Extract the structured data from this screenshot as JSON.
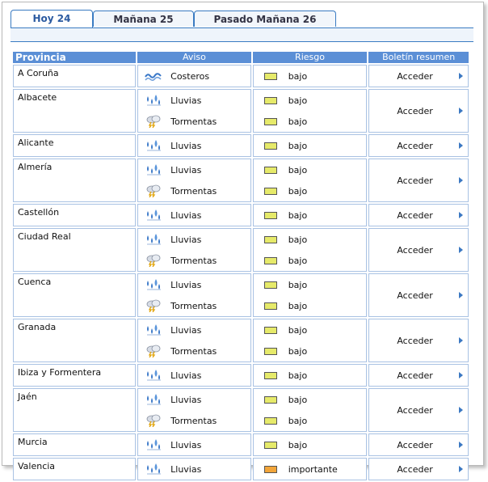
{
  "tabs": [
    {
      "label": "Hoy 24",
      "active": true
    },
    {
      "label": "Mañana 25",
      "active": false
    },
    {
      "label": "Pasado Mañana 26",
      "active": false
    }
  ],
  "table": {
    "headers": {
      "provincia": "Provincia",
      "aviso": "Aviso",
      "riesgo": "Riesgo",
      "boletin": "Boletín resumen"
    },
    "access_label": "Acceder",
    "colors": {
      "bajo": "#e6ea6a",
      "importante": "#f2a53a"
    },
    "rows": [
      {
        "provincia": "A Coruña",
        "avisos": [
          {
            "icon": "coastal-waves-icon",
            "label": "Costeros",
            "riesgo": "bajo",
            "level": "bajo"
          }
        ]
      },
      {
        "provincia": "Albacete",
        "avisos": [
          {
            "icon": "rain-icon",
            "label": "Lluvias",
            "riesgo": "bajo",
            "level": "bajo"
          },
          {
            "icon": "storm-icon",
            "label": "Tormentas",
            "riesgo": "bajo",
            "level": "bajo"
          }
        ]
      },
      {
        "provincia": "Alicante",
        "avisos": [
          {
            "icon": "rain-icon",
            "label": "Lluvias",
            "riesgo": "bajo",
            "level": "bajo"
          }
        ]
      },
      {
        "provincia": "Almería",
        "avisos": [
          {
            "icon": "rain-icon",
            "label": "Lluvias",
            "riesgo": "bajo",
            "level": "bajo"
          },
          {
            "icon": "storm-icon",
            "label": "Tormentas",
            "riesgo": "bajo",
            "level": "bajo"
          }
        ]
      },
      {
        "provincia": "Castellón",
        "avisos": [
          {
            "icon": "rain-icon",
            "label": "Lluvias",
            "riesgo": "bajo",
            "level": "bajo"
          }
        ]
      },
      {
        "provincia": "Ciudad Real",
        "avisos": [
          {
            "icon": "rain-icon",
            "label": "Lluvias",
            "riesgo": "bajo",
            "level": "bajo"
          },
          {
            "icon": "storm-icon",
            "label": "Tormentas",
            "riesgo": "bajo",
            "level": "bajo"
          }
        ]
      },
      {
        "provincia": "Cuenca",
        "avisos": [
          {
            "icon": "rain-icon",
            "label": "Lluvias",
            "riesgo": "bajo",
            "level": "bajo"
          },
          {
            "icon": "storm-icon",
            "label": "Tormentas",
            "riesgo": "bajo",
            "level": "bajo"
          }
        ]
      },
      {
        "provincia": "Granada",
        "avisos": [
          {
            "icon": "rain-icon",
            "label": "Lluvias",
            "riesgo": "bajo",
            "level": "bajo"
          },
          {
            "icon": "storm-icon",
            "label": "Tormentas",
            "riesgo": "bajo",
            "level": "bajo"
          }
        ]
      },
      {
        "provincia": "Ibiza y Formentera",
        "avisos": [
          {
            "icon": "rain-icon",
            "label": "Lluvias",
            "riesgo": "bajo",
            "level": "bajo"
          }
        ]
      },
      {
        "provincia": "Jaén",
        "avisos": [
          {
            "icon": "rain-icon",
            "label": "Lluvias",
            "riesgo": "bajo",
            "level": "bajo"
          },
          {
            "icon": "storm-icon",
            "label": "Tormentas",
            "riesgo": "bajo",
            "level": "bajo"
          }
        ]
      },
      {
        "provincia": "Murcia",
        "avisos": [
          {
            "icon": "rain-icon",
            "label": "Lluvias",
            "riesgo": "bajo",
            "level": "bajo"
          }
        ]
      },
      {
        "provincia": "Valencia",
        "avisos": [
          {
            "icon": "rain-icon",
            "label": "Lluvias",
            "riesgo": "importante",
            "level": "importante"
          }
        ]
      }
    ]
  }
}
